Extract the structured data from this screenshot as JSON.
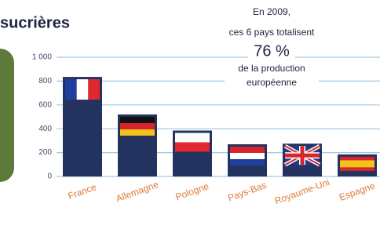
{
  "chart_data": {
    "type": "bar",
    "title": "sucrières",
    "annotation": [
      "En 2009,",
      "ces 6 pays totalisent",
      "76 %",
      "de la production",
      "européenne"
    ],
    "categories": [
      "France",
      "Allemagne",
      "Pologne",
      "Pays-Bas",
      "Royaume-Uni",
      "Espagne"
    ],
    "values": [
      835,
      520,
      385,
      270,
      275,
      185
    ],
    "color": "#23325e",
    "ylim": [
      0,
      1000
    ],
    "yticks": [
      0,
      200,
      400,
      600,
      800,
      {
        "value": 1000,
        "label": "1 000"
      }
    ],
    "grid": true
  }
}
